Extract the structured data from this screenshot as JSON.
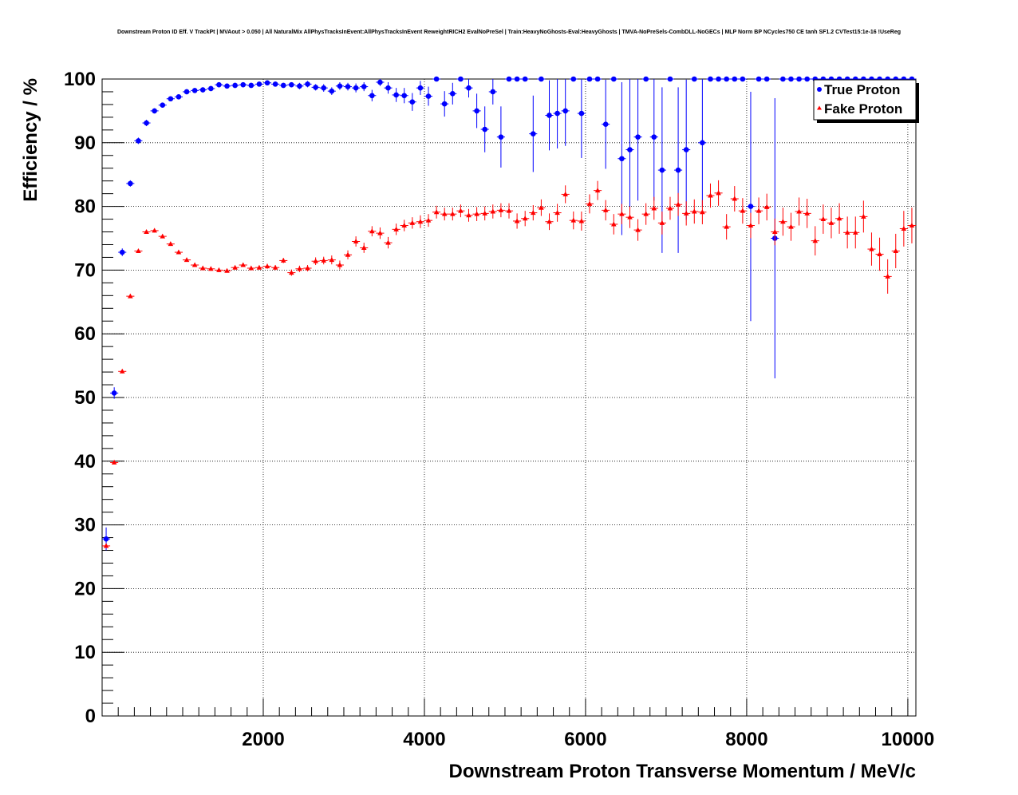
{
  "chart_data": {
    "type": "scatter",
    "title": "Downstream Proton ID Eff. V TrackPt | MVAout > 0.050 | All NaturalMix AllPhysTracksInEvent:AllPhysTracksInEvent ReweightRICH2 EvalNoPreSel | Train:HeavyNoGhosts-Eval:HeavyGhosts | TMVA-NoPreSels-CombDLL-NoGECs | MLP Norm BP NCycles750 CE tanh SF1.2 CVTest15:1e-16 !UseReg",
    "xlabel": "Downstream Proton Transverse Momentum / MeV/c",
    "ylabel": "Efficiency / %",
    "xlim": [
      0,
      10100
    ],
    "ylim": [
      0,
      100
    ],
    "x_ticks": [
      "2000",
      "4000",
      "6000",
      "8000",
      "10000"
    ],
    "y_ticks": [
      "0",
      "10",
      "20",
      "30",
      "40",
      "50",
      "60",
      "70",
      "80",
      "90",
      "100"
    ],
    "x_tick_values": [
      2000,
      4000,
      6000,
      8000,
      10000
    ],
    "y_tick_values": [
      0,
      10,
      20,
      30,
      40,
      50,
      60,
      70,
      80,
      90,
      100
    ],
    "grid": true,
    "legend_position": "top-right",
    "x_bin_halfwidth": 50,
    "series": [
      {
        "name": "True Proton",
        "color": "#0000ff",
        "marker": "circle",
        "points": [
          [
            50,
            27.8,
            1.8
          ],
          [
            150,
            50.7,
            0.9
          ],
          [
            250,
            72.8,
            0.6
          ],
          [
            350,
            83.6,
            0.5
          ],
          [
            450,
            90.3,
            0.5
          ],
          [
            550,
            93.1,
            0.5
          ],
          [
            650,
            95,
            0.4
          ],
          [
            750,
            95.9,
            0.4
          ],
          [
            850,
            96.9,
            0.4
          ],
          [
            950,
            97.2,
            0.4
          ],
          [
            1050,
            98,
            0.4
          ],
          [
            1150,
            98.2,
            0.4
          ],
          [
            1250,
            98.3,
            0.4
          ],
          [
            1350,
            98.5,
            0.4
          ],
          [
            1450,
            99.1,
            0.4
          ],
          [
            1550,
            98.9,
            0.4
          ],
          [
            1650,
            99,
            0.4
          ],
          [
            1750,
            99.1,
            0.4
          ],
          [
            1850,
            99,
            0.4
          ],
          [
            1950,
            99.2,
            0.4
          ],
          [
            2050,
            99.4,
            0.4
          ],
          [
            2150,
            99.2,
            0.4
          ],
          [
            2250,
            99,
            0.4
          ],
          [
            2350,
            99.1,
            0.4
          ],
          [
            2450,
            98.9,
            0.5
          ],
          [
            2550,
            99.2,
            0.5
          ],
          [
            2650,
            98.7,
            0.5
          ],
          [
            2750,
            98.6,
            0.6
          ],
          [
            2850,
            98.1,
            0.6
          ],
          [
            2950,
            98.9,
            0.6
          ],
          [
            3050,
            98.8,
            0.6
          ],
          [
            3150,
            98.6,
            0.7
          ],
          [
            3250,
            98.8,
            0.7
          ],
          [
            3350,
            97.4,
            0.9
          ],
          [
            3450,
            99.5,
            0.6
          ],
          [
            3550,
            98.6,
            0.9
          ],
          [
            3650,
            97.5,
            1.1
          ],
          [
            3750,
            97.4,
            1.2
          ],
          [
            3850,
            96.4,
            1.4
          ],
          [
            3950,
            98.6,
            1.1
          ],
          [
            4050,
            97.3,
            1.5
          ],
          [
            4150,
            100,
            0
          ],
          [
            4250,
            96.1,
            2
          ],
          [
            4350,
            97.7,
            1.7
          ],
          [
            4450,
            100,
            0
          ],
          [
            4550,
            98.6,
            1.5
          ],
          [
            4650,
            95,
            2.7
          ],
          [
            4750,
            92.1,
            3.6
          ],
          [
            4850,
            98,
            2
          ],
          [
            4950,
            90.9,
            4.8
          ],
          [
            5050,
            100,
            0
          ],
          [
            5150,
            100,
            0
          ],
          [
            5250,
            100,
            0
          ],
          [
            5350,
            91.4,
            6
          ],
          [
            5450,
            100,
            0
          ],
          [
            5550,
            94.3,
            5.5
          ],
          [
            5650,
            94.6,
            5.5
          ],
          [
            5750,
            95,
            5.5
          ],
          [
            5850,
            100,
            0
          ],
          [
            5950,
            94.6,
            7
          ],
          [
            6050,
            100,
            0
          ],
          [
            6150,
            100,
            0
          ],
          [
            6250,
            92.9,
            7
          ],
          [
            6350,
            100,
            0
          ],
          [
            6450,
            87.5,
            12
          ],
          [
            6550,
            88.9,
            12
          ],
          [
            6650,
            90.9,
            10
          ],
          [
            6750,
            100,
            0
          ],
          [
            6850,
            90.9,
            10
          ],
          [
            6950,
            85.7,
            13
          ],
          [
            7050,
            100,
            0
          ],
          [
            7150,
            85.7,
            13
          ],
          [
            7250,
            88.9,
            11
          ],
          [
            7350,
            100,
            0
          ],
          [
            7450,
            90,
            10
          ],
          [
            7550,
            100,
            0
          ],
          [
            7650,
            100,
            0
          ],
          [
            7750,
            100,
            0
          ],
          [
            7850,
            100,
            0
          ],
          [
            7950,
            100,
            0
          ],
          [
            8050,
            80,
            18
          ],
          [
            8150,
            100,
            0
          ],
          [
            8250,
            100,
            0
          ],
          [
            8350,
            75,
            22
          ],
          [
            8450,
            100,
            0
          ],
          [
            8550,
            100,
            0
          ],
          [
            8650,
            100,
            0
          ],
          [
            8750,
            100,
            0
          ],
          [
            8850,
            100,
            0
          ],
          [
            8950,
            100,
            0
          ],
          [
            9050,
            100,
            0
          ],
          [
            9150,
            100,
            0
          ],
          [
            9250,
            100,
            0
          ],
          [
            9350,
            100,
            0
          ],
          [
            9450,
            100,
            0
          ],
          [
            9550,
            100,
            0
          ],
          [
            9650,
            100,
            0
          ],
          [
            9750,
            100,
            0
          ],
          [
            9850,
            100,
            0
          ],
          [
            9950,
            100,
            0
          ],
          [
            10050,
            100,
            0
          ]
        ]
      },
      {
        "name": "Fake Proton",
        "color": "#ff0000",
        "marker": "triangle",
        "points": [
          [
            50,
            26.7,
            0.3
          ],
          [
            150,
            39.8,
            0.3
          ],
          [
            250,
            54.1,
            0.3
          ],
          [
            350,
            65.9,
            0.3
          ],
          [
            450,
            73,
            0.3
          ],
          [
            550,
            76,
            0.3
          ],
          [
            650,
            76.2,
            0.3
          ],
          [
            750,
            75.3,
            0.3
          ],
          [
            850,
            74.1,
            0.3
          ],
          [
            950,
            72.8,
            0.3
          ],
          [
            1050,
            71.6,
            0.3
          ],
          [
            1150,
            70.8,
            0.3
          ],
          [
            1250,
            70.3,
            0.3
          ],
          [
            1350,
            70.2,
            0.3
          ],
          [
            1450,
            70,
            0.3
          ],
          [
            1550,
            69.9,
            0.3
          ],
          [
            1650,
            70.4,
            0.3
          ],
          [
            1750,
            70.8,
            0.3
          ],
          [
            1850,
            70.3,
            0.3
          ],
          [
            1950,
            70.4,
            0.3
          ],
          [
            2050,
            70.6,
            0.4
          ],
          [
            2150,
            70.4,
            0.4
          ],
          [
            2250,
            71.5,
            0.4
          ],
          [
            2350,
            69.6,
            0.5
          ],
          [
            2450,
            70.2,
            0.5
          ],
          [
            2550,
            70.3,
            0.5
          ],
          [
            2650,
            71.4,
            0.6
          ],
          [
            2750,
            71.5,
            0.6
          ],
          [
            2850,
            71.6,
            0.7
          ],
          [
            2950,
            70.8,
            0.7
          ],
          [
            3050,
            72.4,
            0.7
          ],
          [
            3150,
            74.5,
            0.8
          ],
          [
            3250,
            73.5,
            0.8
          ],
          [
            3350,
            76.1,
            0.8
          ],
          [
            3450,
            75.8,
            0.9
          ],
          [
            3550,
            74.3,
            0.9
          ],
          [
            3650,
            76.4,
            0.9
          ],
          [
            3750,
            77,
            0.9
          ],
          [
            3850,
            77.4,
            0.9
          ],
          [
            3950,
            77.6,
            1
          ],
          [
            4050,
            77.8,
            1
          ],
          [
            4150,
            79.1,
            1
          ],
          [
            4250,
            78.8,
            1
          ],
          [
            4350,
            78.8,
            1
          ],
          [
            4450,
            79.3,
            1
          ],
          [
            4550,
            78.6,
            1
          ],
          [
            4650,
            78.8,
            1.1
          ],
          [
            4750,
            78.9,
            1.1
          ],
          [
            4850,
            79.2,
            1.1
          ],
          [
            4950,
            79.4,
            1.1
          ],
          [
            5050,
            79.3,
            1.2
          ],
          [
            5150,
            77.7,
            1.2
          ],
          [
            5250,
            78.1,
            1.2
          ],
          [
            5350,
            79,
            1.2
          ],
          [
            5450,
            79.8,
            1.3
          ],
          [
            5550,
            77.6,
            1.3
          ],
          [
            5650,
            79,
            1.4
          ],
          [
            5750,
            81.9,
            1.4
          ],
          [
            5850,
            77.8,
            1.4
          ],
          [
            5950,
            77.7,
            1.5
          ],
          [
            6050,
            80.4,
            1.5
          ],
          [
            6150,
            82.5,
            1.5
          ],
          [
            6250,
            79.4,
            1.6
          ],
          [
            6350,
            77.2,
            1.6
          ],
          [
            6450,
            78.8,
            1.6
          ],
          [
            6550,
            78.3,
            1.7
          ],
          [
            6650,
            76.3,
            1.7
          ],
          [
            6750,
            78.8,
            1.7
          ],
          [
            6850,
            79.7,
            1.8
          ],
          [
            6950,
            77.4,
            1.8
          ],
          [
            7050,
            79.7,
            1.8
          ],
          [
            7150,
            80.3,
            1.8
          ],
          [
            7250,
            78.9,
            1.9
          ],
          [
            7350,
            79.2,
            1.9
          ],
          [
            7450,
            79.1,
            1.9
          ],
          [
            7550,
            81.7,
            1.9
          ],
          [
            7650,
            82.1,
            2
          ],
          [
            7750,
            76.8,
            2
          ],
          [
            7850,
            81.2,
            2
          ],
          [
            7950,
            79.3,
            2
          ],
          [
            8050,
            77,
            2
          ],
          [
            8150,
            79.3,
            2.1
          ],
          [
            8250,
            79.9,
            2.1
          ],
          [
            8350,
            76,
            2.1
          ],
          [
            8450,
            77.6,
            2.2
          ],
          [
            8550,
            76.8,
            2.2
          ],
          [
            8650,
            79.2,
            2.2
          ],
          [
            8750,
            78.9,
            2.3
          ],
          [
            8850,
            74.6,
            2.3
          ],
          [
            8950,
            78,
            2.3
          ],
          [
            9050,
            77.4,
            2.4
          ],
          [
            9150,
            78.1,
            2.4
          ],
          [
            9250,
            75.9,
            2.5
          ],
          [
            9350,
            75.9,
            2.5
          ],
          [
            9450,
            78.4,
            2.5
          ],
          [
            9550,
            73.3,
            2.6
          ],
          [
            9650,
            72.5,
            2.6
          ],
          [
            9750,
            69,
            2.7
          ],
          [
            9850,
            73,
            2.7
          ],
          [
            9950,
            76.5,
            2.8
          ],
          [
            10050,
            77,
            2.8
          ]
        ]
      }
    ]
  }
}
